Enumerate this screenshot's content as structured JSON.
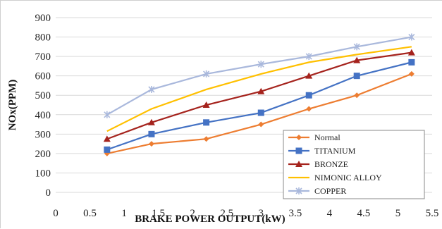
{
  "chart_data": {
    "type": "line",
    "xlabel": "BRAKE POWER OUTPUT(kW)",
    "ylabel": "NOx(PPM)",
    "xlim": [
      0,
      5.5
    ],
    "ylim": [
      0,
      900
    ],
    "x_ticks": [
      "0",
      "0.5",
      "1",
      "1.5",
      "2",
      "2.5",
      "3",
      "3.5",
      "4",
      "4.5",
      "5",
      "5.5"
    ],
    "y_ticks": [
      "0",
      "100",
      "200",
      "300",
      "400",
      "500",
      "600",
      "700",
      "800",
      "900"
    ],
    "grid": "horizontal",
    "legend_position": "bottom-right",
    "x": [
      0.75,
      1.4,
      2.2,
      3.0,
      3.7,
      4.4,
      5.2
    ],
    "series": [
      {
        "name": "Normal",
        "color": "#ed7d31",
        "marker": "diamond",
        "values": [
          200,
          250,
          275,
          350,
          430,
          500,
          610
        ]
      },
      {
        "name": "TITANIUM",
        "color": "#4472c4",
        "marker": "square",
        "values": [
          220,
          300,
          360,
          410,
          500,
          600,
          670
        ]
      },
      {
        "name": "BRONZE",
        "color": "#a5231d",
        "marker": "triangle",
        "values": [
          275,
          360,
          450,
          520,
          600,
          680,
          720
        ]
      },
      {
        "name": "NIMONIC ALLOY",
        "color": "#ffc000",
        "marker": "none",
        "values": [
          315,
          430,
          530,
          610,
          670,
          710,
          750
        ]
      },
      {
        "name": "COPPER",
        "color": "#a9b8dc",
        "marker": "star",
        "values": [
          400,
          530,
          610,
          660,
          700,
          750,
          800
        ]
      }
    ]
  }
}
